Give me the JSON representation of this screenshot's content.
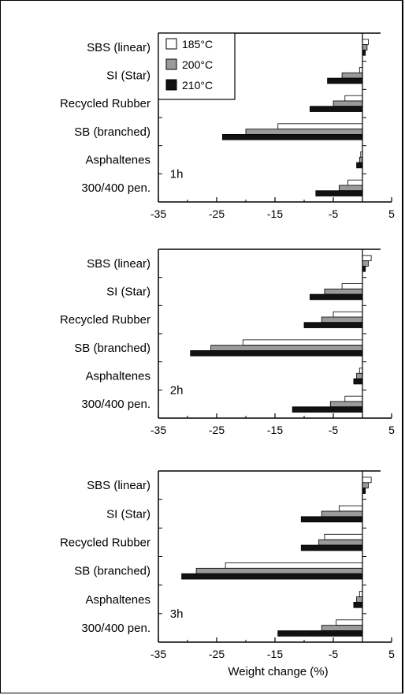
{
  "chart_data": [
    {
      "type": "bar",
      "orientation": "horizontal",
      "panel_label": "1h",
      "categories": [
        "SBS (linear)",
        "SI (Star)",
        "Recycled Rubber",
        "SB (branched)",
        "Asphaltenes",
        "300/400 pen."
      ],
      "series": [
        {
          "name": "185°C",
          "values": [
            1.0,
            -0.5,
            -3.0,
            -14.5,
            -0.3,
            -2.5
          ]
        },
        {
          "name": "200°C",
          "values": [
            0.8,
            -3.5,
            -5.0,
            -20.0,
            -0.5,
            -4.0
          ]
        },
        {
          "name": "210°C",
          "values": [
            0.5,
            -6.0,
            -9.0,
            -24.0,
            -1.0,
            -8.0
          ]
        }
      ],
      "xlim": [
        -35,
        5
      ],
      "xticks": [
        "-35",
        "-25",
        "-15",
        "-5",
        "5"
      ],
      "xlabel": "",
      "legend": {
        "placement": "top-left",
        "show": true
      }
    },
    {
      "type": "bar",
      "orientation": "horizontal",
      "panel_label": "2h",
      "categories": [
        "SBS (linear)",
        "SI (Star)",
        "Recycled Rubber",
        "SB (branched)",
        "Asphaltenes",
        "300/400 pen."
      ],
      "series": [
        {
          "name": "185°C",
          "values": [
            1.5,
            -3.5,
            -5.0,
            -20.5,
            -0.5,
            -3.0
          ]
        },
        {
          "name": "200°C",
          "values": [
            1.0,
            -6.5,
            -7.0,
            -26.0,
            -1.0,
            -5.5
          ]
        },
        {
          "name": "210°C",
          "values": [
            0.5,
            -9.0,
            -10.0,
            -29.5,
            -1.5,
            -12.0
          ]
        }
      ],
      "xlim": [
        -35,
        5
      ],
      "xticks": [
        "-35",
        "-25",
        "-15",
        "-5",
        "5"
      ],
      "xlabel": "",
      "legend": {
        "show": false
      }
    },
    {
      "type": "bar",
      "orientation": "horizontal",
      "panel_label": "3h",
      "categories": [
        "SBS (linear)",
        "SI (Star)",
        "Recycled Rubber",
        "SB (branched)",
        "Asphaltenes",
        "300/400 pen."
      ],
      "series": [
        {
          "name": "185°C",
          "values": [
            1.5,
            -4.0,
            -6.5,
            -23.5,
            -0.5,
            -4.5
          ]
        },
        {
          "name": "200°C",
          "values": [
            1.0,
            -7.0,
            -7.5,
            -28.5,
            -1.0,
            -7.0
          ]
        },
        {
          "name": "210°C",
          "values": [
            0.5,
            -10.5,
            -10.5,
            -31.0,
            -1.5,
            -14.5
          ]
        }
      ],
      "xlim": [
        -35,
        5
      ],
      "xticks": [
        "-35",
        "-25",
        "-15",
        "-5",
        "5"
      ],
      "xlabel": "Weight change (%)",
      "legend": {
        "show": false
      }
    }
  ],
  "colors": {
    "185°C": "#ffffff",
    "200°C": "#9a9a9a",
    "210°C": "#111111",
    "axis": "#000000"
  }
}
